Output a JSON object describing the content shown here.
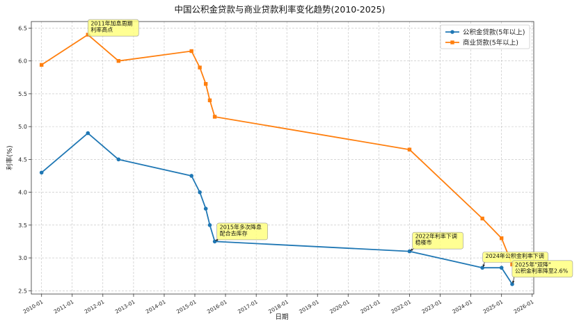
{
  "chart_data": {
    "type": "line",
    "title": "中国公积金贷款与商业贷款利率变化趋势(2010-2025)",
    "xlabel": "日期",
    "ylabel": "利率(%)",
    "ylim": [
      2.45,
      6.6
    ],
    "yticks": [
      "2.5",
      "3.0",
      "3.5",
      "4.0",
      "4.5",
      "5.0",
      "5.5",
      "6.0",
      "6.5"
    ],
    "xlim": [
      "2009-09-01",
      "2026-01-20"
    ],
    "xticks": [
      "2010-01",
      "2011-01",
      "2012-01",
      "2013-01",
      "2014-01",
      "2015-01",
      "2016-01",
      "2017-01",
      "2018-01",
      "2019-01",
      "2020-01",
      "2021-01",
      "2022-01",
      "2023-01",
      "2024-01",
      "2025-01",
      "2026-01"
    ],
    "grid": true,
    "legend_position": "top-right",
    "series": [
      {
        "name": "公积金贷款(5年以上)",
        "color": "#1f77b4",
        "marker": "circle",
        "points": [
          {
            "x": "2010-01-01",
            "y": 4.3
          },
          {
            "x": "2011-07-07",
            "y": 4.9
          },
          {
            "x": "2012-07-06",
            "y": 4.5
          },
          {
            "x": "2014-11-22",
            "y": 4.25
          },
          {
            "x": "2015-03-01",
            "y": 4.0
          },
          {
            "x": "2015-05-11",
            "y": 3.75
          },
          {
            "x": "2015-06-28",
            "y": 3.5
          },
          {
            "x": "2015-08-26",
            "y": 3.25
          },
          {
            "x": "2022-01-01",
            "y": 3.1
          },
          {
            "x": "2024-05-18",
            "y": 2.85
          },
          {
            "x": "2025-01-01",
            "y": 2.85
          },
          {
            "x": "2025-05-08",
            "y": 2.6
          }
        ]
      },
      {
        "name": "商业贷款(5年以上)",
        "color": "#ff7f0e",
        "marker": "square",
        "points": [
          {
            "x": "2010-01-01",
            "y": 5.94
          },
          {
            "x": "2011-07-07",
            "y": 6.4
          },
          {
            "x": "2012-07-06",
            "y": 6.0
          },
          {
            "x": "2014-11-22",
            "y": 6.15
          },
          {
            "x": "2015-03-01",
            "y": 5.9
          },
          {
            "x": "2015-05-11",
            "y": 5.65
          },
          {
            "x": "2015-06-28",
            "y": 5.4
          },
          {
            "x": "2015-08-26",
            "y": 5.15
          },
          {
            "x": "2022-01-01",
            "y": 4.65
          },
          {
            "x": "2024-05-18",
            "y": 3.6
          },
          {
            "x": "2025-01-01",
            "y": 3.3
          },
          {
            "x": "2025-05-08",
            "y": 2.9
          }
        ]
      }
    ],
    "annotations": [
      {
        "lines": [
          "2011年加息周期",
          "利率高点"
        ],
        "target": {
          "x": "2011-07-07",
          "y": 6.4
        },
        "text_at": {
          "x": "2011-08-01",
          "y": 6.62
        }
      },
      {
        "lines": [
          "2015年多次降息",
          "配合去库存"
        ],
        "target": {
          "x": "2015-08-26",
          "y": 3.25
        },
        "text_at": {
          "x": "2015-10-15",
          "y": 3.52
        }
      },
      {
        "lines": [
          "2022年利率下调",
          "稳楼市"
        ],
        "target": {
          "x": "2022-01-01",
          "y": 3.1
        },
        "text_at": {
          "x": "2022-03-01",
          "y": 3.38
        }
      },
      {
        "lines": [
          "2024年公积金利率下调"
        ],
        "target": {
          "x": "2024-05-18",
          "y": 2.85
        },
        "text_at": {
          "x": "2024-06-15",
          "y": 3.08
        }
      },
      {
        "lines": [
          "2025年\"双降\"",
          "公积金利率降至2.6%"
        ],
        "target": {
          "x": "2025-05-08",
          "y": 2.6
        },
        "text_at": {
          "x": "2025-06-01",
          "y": 2.95
        }
      }
    ]
  }
}
